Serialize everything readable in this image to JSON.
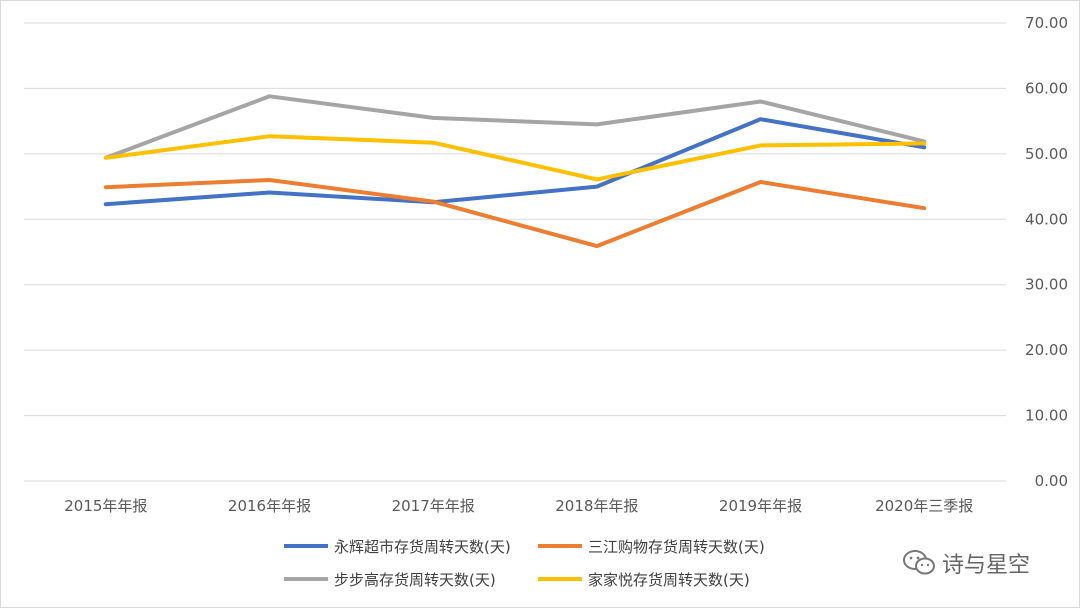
{
  "chart_data": {
    "type": "line",
    "categories": [
      "2015年年报",
      "2016年年报",
      "2017年年报",
      "2018年年报",
      "2019年年报",
      "2020年三季报"
    ],
    "series": [
      {
        "name": "永辉超市存货周转天数(天)",
        "color": "#4472C4",
        "values": [
          42.3,
          44.1,
          42.6,
          45.0,
          55.3,
          51.0
        ]
      },
      {
        "name": "三江购物存货周转天数(天)",
        "color": "#ED7D31",
        "values": [
          44.9,
          46.0,
          42.7,
          35.9,
          45.7,
          41.7
        ]
      },
      {
        "name": "步步高存货周转天数(天)",
        "color": "#A5A5A5",
        "values": [
          49.4,
          58.8,
          55.5,
          54.5,
          58.0,
          51.9
        ]
      },
      {
        "name": "家家悦存货周转天数(天)",
        "color": "#FFC000",
        "values": [
          49.4,
          52.7,
          51.7,
          46.1,
          51.3,
          51.6
        ]
      }
    ],
    "y_ticks": [
      "0.00",
      "10.00",
      "20.00",
      "30.00",
      "40.00",
      "50.00",
      "60.00",
      "70.00"
    ],
    "ylim": [
      0,
      70
    ],
    "y_axis_side": "right",
    "grid": true,
    "legend_position": "bottom"
  },
  "watermark": {
    "text": "诗与星空",
    "icon": "wechat-icon"
  }
}
